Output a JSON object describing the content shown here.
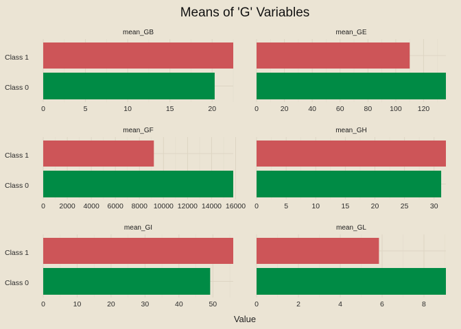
{
  "chart_data": {
    "type": "bar",
    "orientation": "horizontal",
    "title": "Means of 'G' Variables",
    "xlabel": "Value",
    "ylabel": "",
    "categories": [
      "Class 1",
      "Class 0"
    ],
    "colors": {
      "Class 1": "#CD5558",
      "Class 0": "#008B45",
      "background": "#EBE4D4",
      "grid": "#DDD5C3"
    },
    "grid": true,
    "legend": "none",
    "panels": [
      {
        "name": "mean_GB",
        "values": {
          "Class 1": 22.5,
          "Class 0": 20.3
        },
        "xlim": [
          0,
          22.5
        ],
        "ticks": [
          0,
          5,
          10,
          15,
          20
        ]
      },
      {
        "name": "mean_GE",
        "values": {
          "Class 1": 110,
          "Class 0": 136
        },
        "xlim": [
          0,
          136
        ],
        "ticks": [
          0,
          20,
          40,
          60,
          80,
          100,
          120
        ]
      },
      {
        "name": "mean_GF",
        "values": {
          "Class 1": 9200,
          "Class 0": 15800
        },
        "xlim": [
          0,
          15800
        ],
        "ticks": [
          0,
          2000,
          4000,
          6000,
          8000,
          10000,
          12000,
          14000,
          16000
        ]
      },
      {
        "name": "mean_GH",
        "values": {
          "Class 1": 32,
          "Class 0": 31.2
        },
        "xlim": [
          0,
          32
        ],
        "ticks": [
          0,
          5,
          10,
          15,
          20,
          25,
          30
        ]
      },
      {
        "name": "mean_GI",
        "values": {
          "Class 1": 56,
          "Class 0": 49.2
        },
        "xlim": [
          0,
          56
        ],
        "ticks": [
          0,
          10,
          20,
          30,
          40,
          50
        ]
      },
      {
        "name": "mean_GL",
        "values": {
          "Class 1": 5.85,
          "Class 0": 9.05
        },
        "xlim": [
          0,
          9.05
        ],
        "ticks": [
          0,
          2,
          4,
          6,
          8
        ]
      }
    ]
  }
}
